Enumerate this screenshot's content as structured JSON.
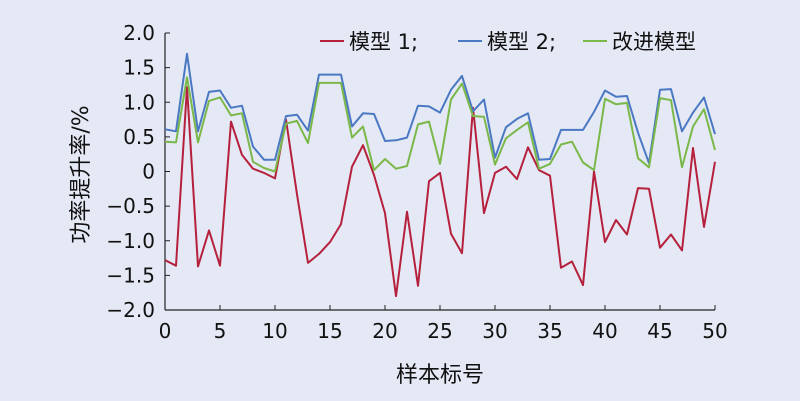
{
  "chart_data": {
    "type": "line",
    "xlabel": "样本标号",
    "ylabel": "功率提升率/%",
    "xlim": [
      0,
      50
    ],
    "ylim": [
      -2.0,
      2.0
    ],
    "x_ticks": [
      0,
      5,
      10,
      15,
      20,
      25,
      30,
      35,
      40,
      45,
      50
    ],
    "y_ticks": [
      -2.0,
      -1.5,
      -1.0,
      -0.5,
      0,
      0.5,
      1.0,
      1.5,
      2.0
    ],
    "x_tick_labels": [
      "0",
      "5",
      "10",
      "15",
      "20",
      "25",
      "30",
      "35",
      "40",
      "45",
      "50"
    ],
    "y_tick_labels": [
      "−2.0",
      "−1.5",
      "−1.0",
      "−0.5",
      "0",
      "0.5",
      "1.0",
      "1.5",
      "2.0"
    ],
    "grid": false,
    "legend_position": "top-right",
    "x": [
      0,
      1,
      2,
      3,
      4,
      5,
      6,
      7,
      8,
      9,
      10,
      11,
      12,
      13,
      14,
      15,
      16,
      17,
      18,
      19,
      20,
      21,
      22,
      23,
      24,
      25,
      26,
      27,
      28,
      29,
      30,
      31,
      32,
      33,
      34,
      35,
      36,
      37,
      38,
      39,
      40,
      41,
      42,
      43,
      44,
      45,
      46,
      47,
      48,
      49,
      50
    ],
    "series": [
      {
        "name": "模型 1;",
        "color": "#b5213c",
        "values": [
          -1.28,
          -1.36,
          1.22,
          -1.37,
          -0.85,
          -1.36,
          0.72,
          0.24,
          0.04,
          -0.02,
          -0.1,
          0.75,
          -0.33,
          -1.32,
          -1.19,
          -1.02,
          -0.76,
          0.07,
          0.38,
          -0.05,
          -0.6,
          -1.8,
          -0.58,
          -1.65,
          -0.14,
          -0.02,
          -0.9,
          -1.18,
          0.92,
          -0.6,
          -0.02,
          0.07,
          -0.11,
          0.35,
          0.02,
          -0.06,
          -1.39,
          -1.3,
          -1.64,
          0.0,
          -1.02,
          -0.7,
          -0.91,
          -0.24,
          -0.25,
          -1.1,
          -0.91,
          -1.14,
          0.34,
          -0.8,
          0.14
        ]
      },
      {
        "name": "模型 2;",
        "color": "#4a78c2",
        "values": [
          0.61,
          0.58,
          1.7,
          0.58,
          1.15,
          1.17,
          0.92,
          0.95,
          0.36,
          0.17,
          0.17,
          0.8,
          0.82,
          0.59,
          1.4,
          1.4,
          1.4,
          0.65,
          0.84,
          0.83,
          0.44,
          0.45,
          0.49,
          0.95,
          0.94,
          0.85,
          1.18,
          1.38,
          0.87,
          1.04,
          0.2,
          0.64,
          0.76,
          0.84,
          0.17,
          0.18,
          0.6,
          0.6,
          0.6,
          0.86,
          1.17,
          1.08,
          1.09,
          0.56,
          0.12,
          1.18,
          1.19,
          0.58,
          0.85,
          1.07,
          0.54
        ]
      },
      {
        "name": "改进模型",
        "color": "#7bb84a",
        "values": [
          0.43,
          0.42,
          1.36,
          0.42,
          1.02,
          1.07,
          0.81,
          0.84,
          0.14,
          0.05,
          0.0,
          0.69,
          0.73,
          0.41,
          1.28,
          1.28,
          1.28,
          0.49,
          0.65,
          0.02,
          0.18,
          0.04,
          0.08,
          0.68,
          0.72,
          0.11,
          1.04,
          1.27,
          0.8,
          0.79,
          0.1,
          0.48,
          0.6,
          0.71,
          0.04,
          0.11,
          0.39,
          0.43,
          0.13,
          0.02,
          1.05,
          0.97,
          0.99,
          0.19,
          0.06,
          1.06,
          1.03,
          0.06,
          0.65,
          0.9,
          0.31
        ]
      }
    ]
  }
}
